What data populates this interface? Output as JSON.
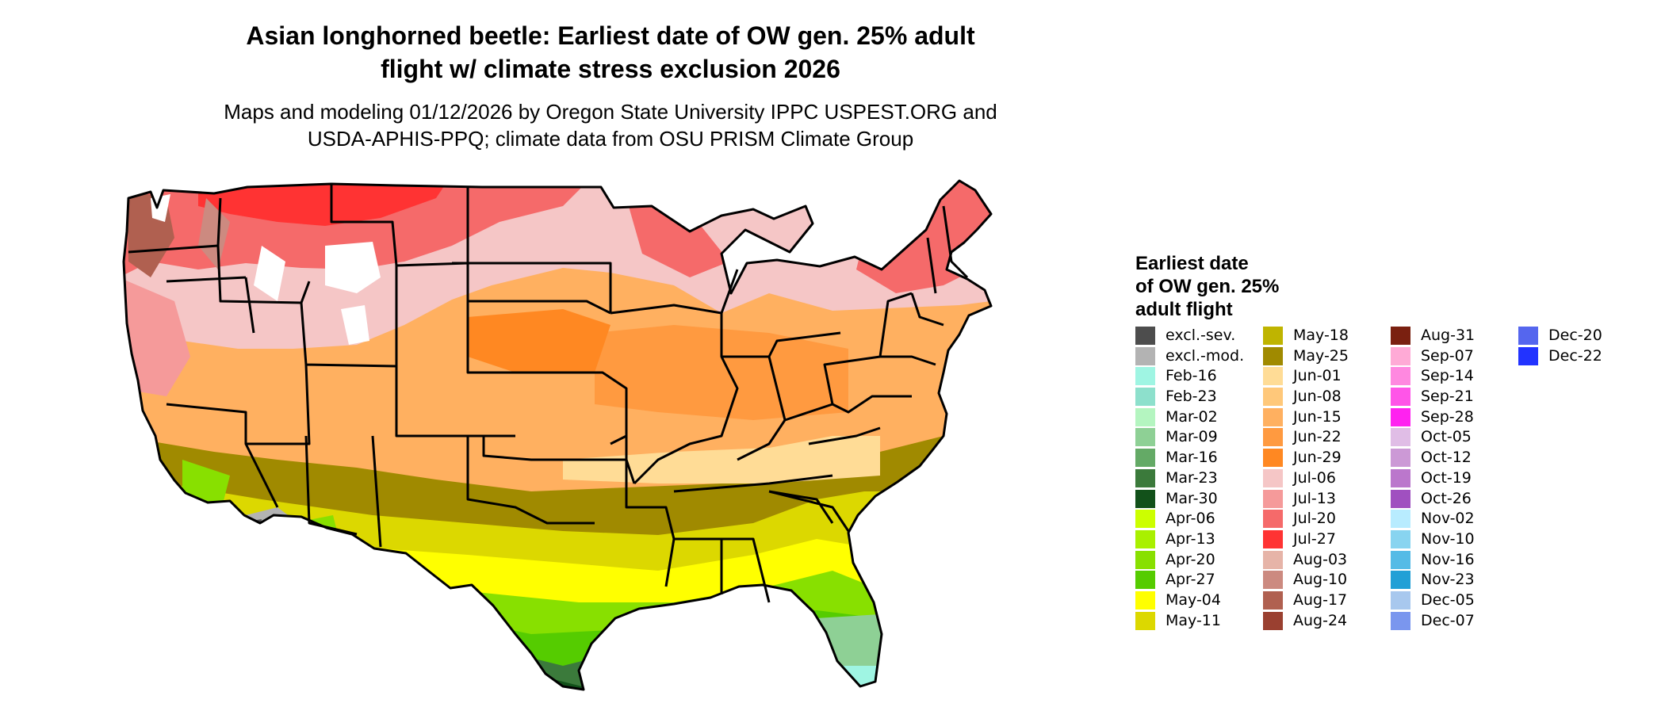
{
  "title_line1": "Asian longhorned beetle: Earliest date of OW gen. 25% adult",
  "title_line2": "flight w/ climate stress exclusion 2026",
  "subtitle_line1": "Maps and modeling 01/12/2026 by Oregon State University IPPC USPEST.ORG and",
  "subtitle_line2": "USDA-APHIS-PPQ; climate data from OSU PRISM Climate Group",
  "legend": {
    "title_line1": "Earliest date",
    "title_line2": "of OW gen. 25%",
    "title_line3": "adult flight",
    "items": [
      {
        "label": "excl.-sev.",
        "color": "#4d4d4d"
      },
      {
        "label": "excl.-mod.",
        "color": "#b3b3b3"
      },
      {
        "label": "Feb-16",
        "color": "#9ff5e3"
      },
      {
        "label": "Feb-23",
        "color": "#8de0cc"
      },
      {
        "label": "Mar-02",
        "color": "#b4f5c0"
      },
      {
        "label": "Mar-09",
        "color": "#8ed095"
      },
      {
        "label": "Mar-16",
        "color": "#64aa66"
      },
      {
        "label": "Mar-23",
        "color": "#3b7a3b"
      },
      {
        "label": "Mar-30",
        "color": "#12511a"
      },
      {
        "label": "Apr-06",
        "color": "#ccff00"
      },
      {
        "label": "Apr-13",
        "color": "#a9f000"
      },
      {
        "label": "Apr-20",
        "color": "#88e000"
      },
      {
        "label": "Apr-27",
        "color": "#55cc00"
      },
      {
        "label": "May-04",
        "color": "#ffff00"
      },
      {
        "label": "May-11",
        "color": "#dcd800"
      },
      {
        "label": "May-18",
        "color": "#bfb400"
      },
      {
        "label": "May-25",
        "color": "#a08a00"
      },
      {
        "label": "Jun-01",
        "color": "#ffdc96"
      },
      {
        "label": "Jun-08",
        "color": "#ffc87a"
      },
      {
        "label": "Jun-15",
        "color": "#ffb060"
      },
      {
        "label": "Jun-22",
        "color": "#ff9a40"
      },
      {
        "label": "Jun-29",
        "color": "#ff8822"
      },
      {
        "label": "Jul-06",
        "color": "#f5c6c6"
      },
      {
        "label": "Jul-13",
        "color": "#f59a9a"
      },
      {
        "label": "Jul-20",
        "color": "#f56a6a"
      },
      {
        "label": "Jul-27",
        "color": "#ff3333"
      },
      {
        "label": "Aug-03",
        "color": "#e6b4a8"
      },
      {
        "label": "Aug-10",
        "color": "#cc8a80"
      },
      {
        "label": "Aug-17",
        "color": "#b06050"
      },
      {
        "label": "Aug-24",
        "color": "#9a4030"
      },
      {
        "label": "Aug-31",
        "color": "#7a2010"
      },
      {
        "label": "Sep-07",
        "color": "#ffaad6"
      },
      {
        "label": "Sep-14",
        "color": "#ff88e0"
      },
      {
        "label": "Sep-21",
        "color": "#ff55e8"
      },
      {
        "label": "Sep-28",
        "color": "#ff22f0"
      },
      {
        "label": "Oct-05",
        "color": "#e0bde6"
      },
      {
        "label": "Oct-12",
        "color": "#cc99d6"
      },
      {
        "label": "Oct-19",
        "color": "#bb77cc"
      },
      {
        "label": "Oct-26",
        "color": "#a050c0"
      },
      {
        "label": "Nov-02",
        "color": "#b8ecff"
      },
      {
        "label": "Nov-10",
        "color": "#88d4f0"
      },
      {
        "label": "Nov-16",
        "color": "#55bbe6"
      },
      {
        "label": "Nov-23",
        "color": "#22a0d6"
      },
      {
        "label": "Dec-05",
        "color": "#a8c8ee"
      },
      {
        "label": "Dec-07",
        "color": "#7a96ee"
      },
      {
        "label": "Dec-20",
        "color": "#5566ee"
      },
      {
        "label": "Dec-22",
        "color": "#2233ff"
      }
    ]
  }
}
